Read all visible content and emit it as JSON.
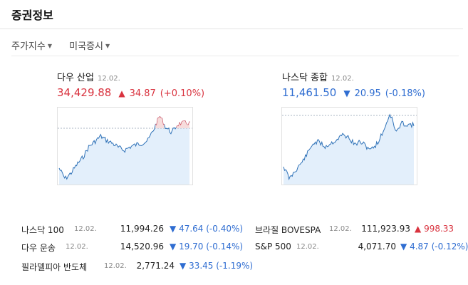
{
  "title": "증권정보",
  "tabs": [
    {
      "label": "주가지수"
    },
    {
      "label": "미국증시"
    }
  ],
  "icons": {
    "dropdown": "caret-down-icon",
    "up": "triangle-up-icon",
    "down": "triangle-down-icon"
  },
  "colors": {
    "up": "#d9333f",
    "down": "#2f6dd1"
  },
  "cards": [
    {
      "name": "다우 산업",
      "date": "12.02.",
      "value": "34,429.88",
      "direction": "up",
      "arrow": "▲",
      "change": "34.87",
      "percent": "(+0.10%)"
    },
    {
      "name": "나스닥 종합",
      "date": "12.02.",
      "value": "11,461.50",
      "direction": "down",
      "arrow": "▼",
      "change": "20.95",
      "percent": "(-0.18%)"
    }
  ],
  "list": [
    {
      "name": "나스닥 100",
      "date": "12.02.",
      "price": "11,994.26",
      "direction": "down",
      "arrow": "▼",
      "change": "47.64",
      "percent": "(-0.40%)"
    },
    {
      "name": "다우 운송",
      "date": "12.02.",
      "price": "14,520.96",
      "direction": "down",
      "arrow": "▼",
      "change": "19.70",
      "percent": "(-0.14%)"
    },
    {
      "name": "필라델피아 반도체",
      "date": "12.02.",
      "price": "2,771.24",
      "direction": "down",
      "arrow": "▼",
      "change": "33.45",
      "percent": "(-1.19%)"
    },
    {
      "name": "브라질 BOVESPA",
      "date": "12.02.",
      "price": "111,923.93",
      "direction": "up",
      "arrow": "▲",
      "change": "998.33",
      "percent": ""
    },
    {
      "name": "S&P 500",
      "date": "12.02.",
      "price": "4,071.70",
      "direction": "down",
      "arrow": "▼",
      "change": "4.87",
      "percent": "(-0.12%)"
    }
  ]
}
